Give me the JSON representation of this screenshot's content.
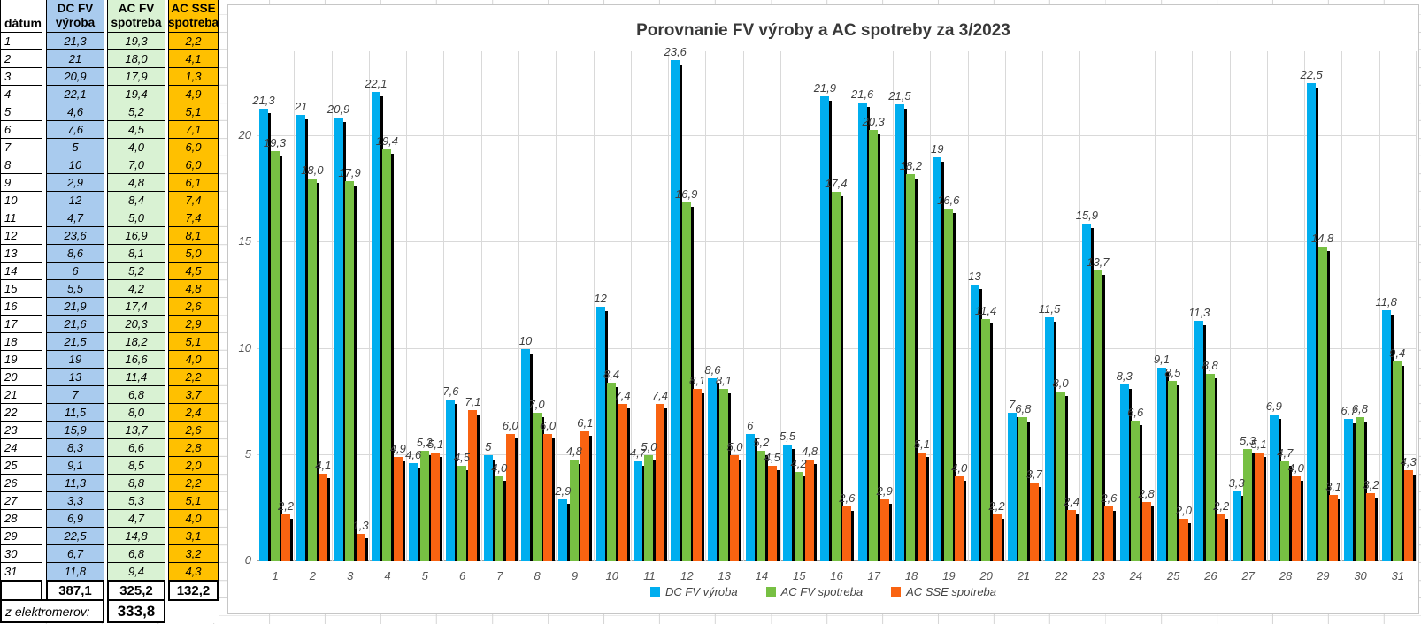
{
  "table": {
    "columns": [
      {
        "line1": "",
        "line2": "dátum"
      },
      {
        "line1": "DC FV",
        "line2": "výroba"
      },
      {
        "line1": "AC FV",
        "line2": "spotreba"
      },
      {
        "line1": "AC SSE",
        "line2": "spotreba"
      }
    ],
    "colors": {
      "dc": "#a9cbee",
      "ac_fv": "#d9f2d3",
      "ac_sse": "#ffc000"
    },
    "rows": [
      [
        "1",
        "21,3",
        "19,3",
        "2,2"
      ],
      [
        "2",
        "21",
        "18,0",
        "4,1"
      ],
      [
        "3",
        "20,9",
        "17,9",
        "1,3"
      ],
      [
        "4",
        "22,1",
        "19,4",
        "4,9"
      ],
      [
        "5",
        "4,6",
        "5,2",
        "5,1"
      ],
      [
        "6",
        "7,6",
        "4,5",
        "7,1"
      ],
      [
        "7",
        "5",
        "4,0",
        "6,0"
      ],
      [
        "8",
        "10",
        "7,0",
        "6,0"
      ],
      [
        "9",
        "2,9",
        "4,8",
        "6,1"
      ],
      [
        "10",
        "12",
        "8,4",
        "7,4"
      ],
      [
        "11",
        "4,7",
        "5,0",
        "7,4"
      ],
      [
        "12",
        "23,6",
        "16,9",
        "8,1"
      ],
      [
        "13",
        "8,6",
        "8,1",
        "5,0"
      ],
      [
        "14",
        "6",
        "5,2",
        "4,5"
      ],
      [
        "15",
        "5,5",
        "4,2",
        "4,8"
      ],
      [
        "16",
        "21,9",
        "17,4",
        "2,6"
      ],
      [
        "17",
        "21,6",
        "20,3",
        "2,9"
      ],
      [
        "18",
        "21,5",
        "18,2",
        "5,1"
      ],
      [
        "19",
        "19",
        "16,6",
        "4,0"
      ],
      [
        "20",
        "13",
        "11,4",
        "2,2"
      ],
      [
        "21",
        "7",
        "6,8",
        "3,7"
      ],
      [
        "22",
        "11,5",
        "8,0",
        "2,4"
      ],
      [
        "23",
        "15,9",
        "13,7",
        "2,6"
      ],
      [
        "24",
        "8,3",
        "6,6",
        "2,8"
      ],
      [
        "25",
        "9,1",
        "8,5",
        "2,0"
      ],
      [
        "26",
        "11,3",
        "8,8",
        "2,2"
      ],
      [
        "27",
        "3,3",
        "5,3",
        "5,1"
      ],
      [
        "28",
        "6,9",
        "4,7",
        "4,0"
      ],
      [
        "29",
        "22,5",
        "14,8",
        "3,1"
      ],
      [
        "30",
        "6,7",
        "6,8",
        "3,2"
      ],
      [
        "31",
        "11,8",
        "9,4",
        "4,3"
      ]
    ],
    "totals": [
      "387,1",
      "325,2",
      "132,2"
    ],
    "meter_label": "z elektromerov:",
    "meter_value": "333,8"
  },
  "chart_data": {
    "type": "bar",
    "title": "Porovnanie FV výroby a AC spotreby za 3/2023",
    "categories": [
      1,
      2,
      3,
      4,
      5,
      6,
      7,
      8,
      9,
      10,
      11,
      12,
      13,
      14,
      15,
      16,
      17,
      18,
      19,
      20,
      21,
      22,
      23,
      24,
      25,
      26,
      27,
      28,
      29,
      30,
      31
    ],
    "series": [
      {
        "name": "DC FV výroba",
        "color": "#00aeef",
        "values": [
          21.3,
          21,
          20.9,
          22.1,
          4.6,
          7.6,
          5,
          10,
          2.9,
          12,
          4.7,
          23.6,
          8.6,
          6,
          5.5,
          21.9,
          21.6,
          21.5,
          19,
          13,
          7,
          11.5,
          15.9,
          8.3,
          9.1,
          11.3,
          3.3,
          6.9,
          22.5,
          6.7,
          11.8
        ],
        "labels": [
          "21,3",
          "21",
          "20,9",
          "22,1",
          "4,6",
          "7,6",
          "5",
          "10",
          "2,9",
          "12",
          "4,7",
          "23,6",
          "8,6",
          "6",
          "5,5",
          "21,9",
          "21,6",
          "21,5",
          "19",
          "13",
          "7",
          "11,5",
          "15,9",
          "8,3",
          "9,1",
          "11,3",
          "3,3",
          "6,9",
          "22,5",
          "6,7",
          "11,8"
        ]
      },
      {
        "name": "AC FV spotreba",
        "color": "#77c043",
        "values": [
          19.3,
          18,
          17.9,
          19.4,
          5.2,
          4.5,
          4,
          7,
          4.8,
          8.4,
          5,
          16.9,
          8.1,
          5.2,
          4.2,
          17.4,
          20.3,
          18.2,
          16.6,
          11.4,
          6.8,
          8,
          13.7,
          6.6,
          8.5,
          8.8,
          5.3,
          4.7,
          14.8,
          6.8,
          9.4
        ],
        "labels": [
          "19,3",
          "18,0",
          "17,9",
          "19,4",
          "5,2",
          "4,5",
          "4,0",
          "7,0",
          "4,8",
          "8,4",
          "5,0",
          "16,9",
          "8,1",
          "5,2",
          "4,2",
          "17,4",
          "20,3",
          "18,2",
          "16,6",
          "11,4",
          "6,8",
          "8,0",
          "13,7",
          "6,6",
          "8,5",
          "8,8",
          "5,3",
          "4,7",
          "14,8",
          "6,8",
          "9,4"
        ]
      },
      {
        "name": "AC SSE spotreba",
        "color": "#f96311",
        "values": [
          2.2,
          4.1,
          1.3,
          4.9,
          5.1,
          7.1,
          6,
          6,
          6.1,
          7.4,
          7.4,
          8.1,
          5,
          4.5,
          4.8,
          2.6,
          2.9,
          5.1,
          4,
          2.2,
          3.7,
          2.4,
          2.6,
          2.8,
          2,
          2.2,
          5.1,
          4,
          3.1,
          3.2,
          4.3
        ],
        "labels": [
          "2,2",
          "4,1",
          "1,3",
          "4,9",
          "5,1",
          "7,1",
          "6,0",
          "6,0",
          "6,1",
          "7,4",
          "7,4",
          "8,1",
          "5,0",
          "4,5",
          "4,8",
          "2,6",
          "2,9",
          "5,1",
          "4,0",
          "2,2",
          "3,7",
          "2,4",
          "2,6",
          "2,8",
          "2,0",
          "2,2",
          "5,1",
          "4,0",
          "3,1",
          "3,2",
          "4,3"
        ]
      }
    ],
    "ylim": [
      0,
      24
    ],
    "yticks": [
      0,
      5,
      10,
      15,
      20
    ],
    "grid": true,
    "legend_position": "bottom"
  }
}
